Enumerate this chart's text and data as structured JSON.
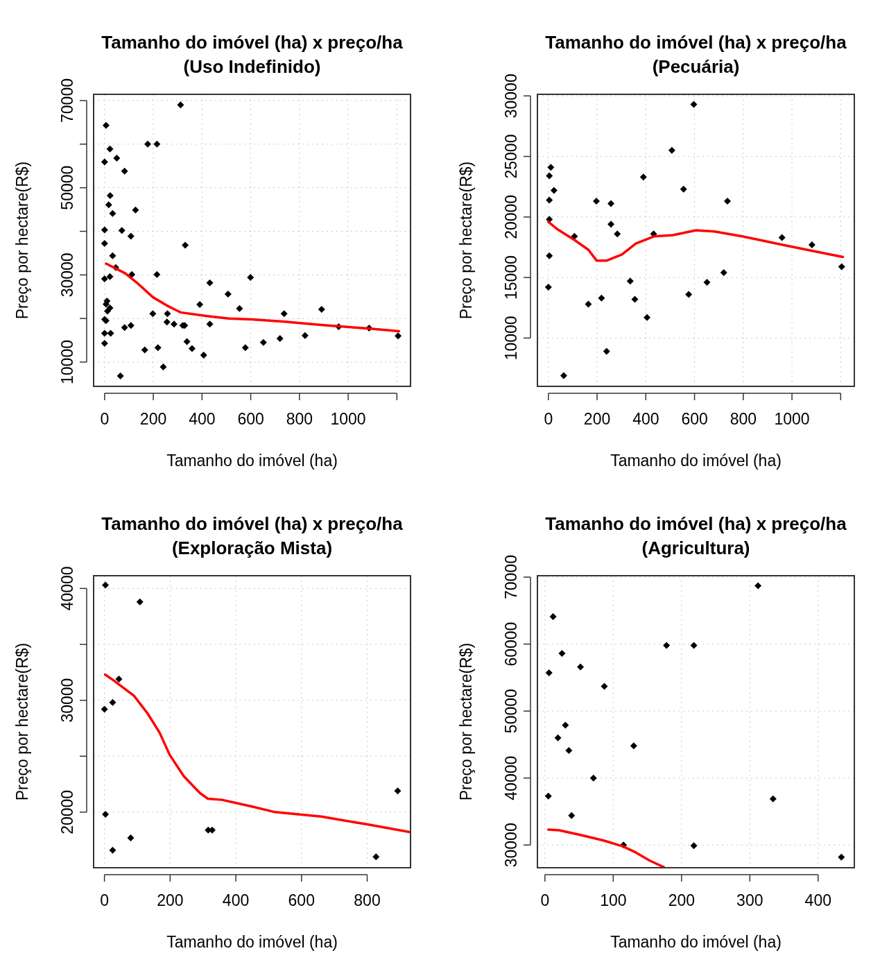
{
  "chart_data": [
    {
      "type": "scatter",
      "title": "Tamanho do imóvel (ha) x preço/ha\n(Uso Indefinido)",
      "xlabel": "Tamanho do imóvel (ha)",
      "ylabel": "Preço por hectare(R$)",
      "xlim": [
        -45,
        1256
      ],
      "ylim": [
        4430,
        71430
      ],
      "xticks": [
        0,
        200,
        400,
        600,
        800,
        1000,
        {
          "value": 1200,
          "label": null
        }
      ],
      "yticks": [
        10000,
        {
          "value": 20000,
          "label": null
        },
        30000,
        {
          "value": 40000,
          "label": null
        },
        50000,
        {
          "value": 60000,
          "label": null
        },
        70000
      ],
      "grid": true,
      "series": [
        {
          "marker": "diamond",
          "color": "#000000",
          "x": [
            312,
            6,
            177,
            215,
            22,
            0,
            50,
            82,
            23,
            17,
            33,
            127,
            0,
            71,
            108,
            0,
            331,
            33,
            46,
            112,
            215,
            0,
            22,
            432,
            599,
            507,
            391,
            554,
            891,
            10,
            6,
            22,
            12,
            0,
            6,
            198,
            258,
            737,
            256,
            285,
            321,
            329,
            432,
            108,
            82,
            961,
            1086,
            0,
            25,
            823,
            1205,
            720,
            652,
            0,
            338,
            359,
            578,
            219,
            165,
            407,
            241,
            65
          ],
          "values": [
            69000,
            64300,
            60000,
            60000,
            58900,
            55900,
            56800,
            53800,
            48200,
            46100,
            44100,
            44900,
            40300,
            40200,
            38900,
            37200,
            36800,
            34400,
            31700,
            30100,
            30100,
            29100,
            29600,
            28200,
            29400,
            25600,
            23200,
            22300,
            22100,
            24000,
            23300,
            22400,
            21700,
            19800,
            19500,
            21100,
            21100,
            21100,
            19200,
            18700,
            18400,
            18400,
            18700,
            18400,
            17900,
            18100,
            17800,
            16600,
            16600,
            16100,
            16000,
            15400,
            14500,
            14300,
            14700,
            13100,
            13300,
            13300,
            12800,
            11600,
            8900,
            6800
          ]
        },
        {
          "type": "line",
          "color": "#ff0000",
          "x": [
            6,
            84,
            131,
            198,
            255,
            312,
            416,
            511,
            606,
            730,
            891,
            1081,
            1209
          ],
          "values": [
            32600,
            30400,
            28300,
            24900,
            23000,
            21400,
            20600,
            20000,
            19800,
            19300,
            18500,
            17700,
            17100
          ]
        }
      ]
    },
    {
      "type": "scatter",
      "title": "Tamanho do imóvel (ha) x preço/ha\n(Pecuária)",
      "xlabel": "Tamanho do imóvel (ha)",
      "ylabel": "Preço por hectare(R$)",
      "xlim": [
        -45,
        1256
      ],
      "ylim": [
        6010,
        30130
      ],
      "xticks": [
        0,
        200,
        400,
        600,
        800,
        1000,
        {
          "value": 1200,
          "label": null
        }
      ],
      "yticks": [
        10000,
        15000,
        20000,
        25000,
        30000
      ],
      "grid": true,
      "series": [
        {
          "marker": "diamond",
          "color": "#000000",
          "x": [
            597,
            507,
            10,
            4,
            23,
            390,
            555,
            4,
            197,
            257,
            735,
            4,
            257,
            283,
            107,
            432,
            959,
            1082,
            4,
            1204,
            720,
            336,
            651,
            0,
            576,
            218,
            355,
            164,
            405,
            239,
            63
          ],
          "values": [
            29300,
            25500,
            24100,
            23400,
            22200,
            23300,
            22300,
            21400,
            21300,
            21100,
            21300,
            19800,
            19400,
            18600,
            18400,
            18600,
            18300,
            17700,
            16800,
            15900,
            15400,
            14700,
            14600,
            14200,
            13600,
            13300,
            13200,
            12800,
            11700,
            8900,
            6900
          ]
        },
        {
          "type": "line",
          "color": "#ff0000",
          "x": [
            0,
            36,
            107,
            164,
            198,
            240,
            302,
            359,
            435,
            511,
            606,
            682,
            796,
            986,
            1209
          ],
          "values": [
            19600,
            19000,
            18100,
            17300,
            16400,
            16400,
            16900,
            17800,
            18400,
            18500,
            18900,
            18800,
            18400,
            17600,
            16700
          ]
        }
      ]
    },
    {
      "type": "scatter",
      "title": "Tamanho do imóvel (ha) x preço/ha\n(Exploração Mista)",
      "xlabel": "Tamanho do imóvel (ha)",
      "ylabel": "Preço por hectare(R$)",
      "xlim": [
        -33,
        932
      ],
      "ylim": [
        15030,
        41140
      ],
      "xticks": [
        0,
        200,
        400,
        600,
        800
      ],
      "yticks": [
        20000,
        {
          "value": 25000,
          "label": null
        },
        30000,
        {
          "value": 35000,
          "label": null
        },
        40000
      ],
      "grid": true,
      "series": [
        {
          "marker": "diamond",
          "color": "#000000",
          "x": [
            3,
            108,
            44,
            25,
            0,
            3,
            80,
            25,
            316,
            328,
            893,
            827
          ],
          "values": [
            40300,
            38800,
            31900,
            29800,
            29200,
            19800,
            17700,
            16600,
            18400,
            18400,
            21900,
            16000
          ]
        },
        {
          "type": "line",
          "color": "#ff0000",
          "x": [
            2,
            27,
            90,
            132,
            168,
            199,
            242,
            291,
            315,
            358,
            449,
            520,
            661,
            801,
            932
          ],
          "values": [
            32300,
            31800,
            30400,
            28800,
            27100,
            25100,
            23200,
            21700,
            21200,
            21100,
            20500,
            20000,
            19600,
            18900,
            18200
          ]
        }
      ]
    },
    {
      "type": "scatter",
      "title": "Tamanho do imóvel (ha) x preço/ha\n(Agricultura)",
      "xlabel": "Tamanho do imóvel (ha)",
      "ylabel": "Preço por hectare(R$)",
      "xlim": [
        -11,
        453
      ],
      "ylim": [
        26610,
        70210
      ],
      "xticks": [
        0,
        100,
        200,
        300,
        400
      ],
      "yticks": [
        30000,
        40000,
        50000,
        60000,
        70000
      ],
      "grid": true,
      "series": [
        {
          "marker": "diamond",
          "color": "#000000",
          "x": [
            312,
            12,
            178,
            218,
            25,
            52,
            6,
            87,
            30,
            19,
            35,
            130,
            71,
            5,
            334,
            39,
            115,
            218,
            434
          ],
          "values": [
            68700,
            64100,
            59800,
            59800,
            58600,
            56600,
            55700,
            53700,
            47900,
            46000,
            44100,
            44800,
            40000,
            37300,
            36900,
            34400,
            30000,
            29900,
            28200
          ]
        },
        {
          "type": "line",
          "color": "#ff0000",
          "x": [
            5,
            21,
            52,
            85,
            114,
            133,
            153,
            174
          ],
          "values": [
            32300,
            32200,
            31500,
            30700,
            29800,
            28900,
            27700,
            26700
          ]
        }
      ]
    }
  ]
}
